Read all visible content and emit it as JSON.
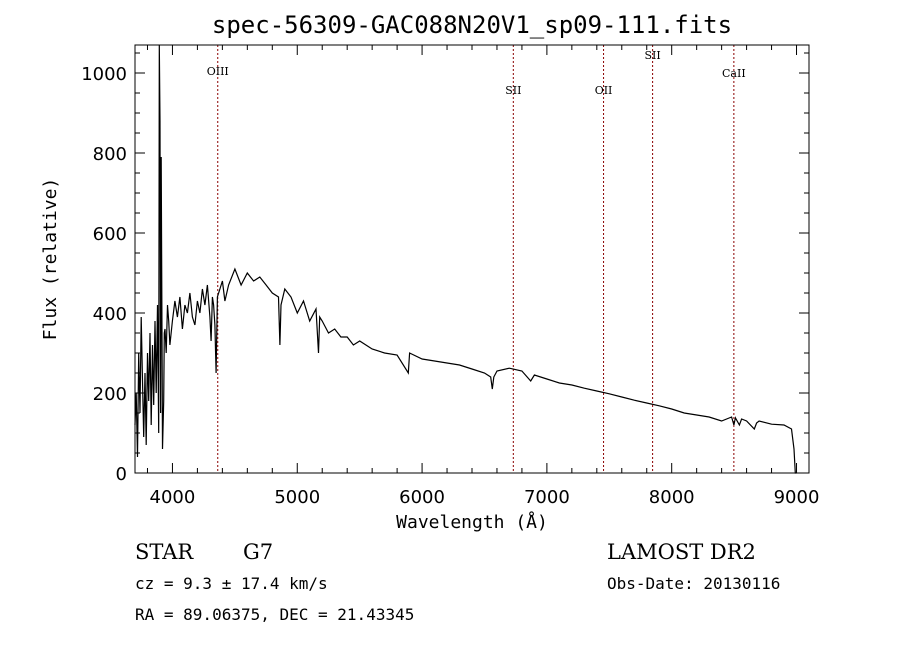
{
  "chart_data": {
    "type": "line",
    "title": "spec-56309-GAC088N20V1_sp09-111.fits",
    "xlabel": "Wavelength (Å)",
    "ylabel": "Flux (relative)",
    "xlim": [
      3700,
      9100
    ],
    "ylim": [
      0,
      1070
    ],
    "xticks": [
      4000,
      5000,
      6000,
      7000,
      8000,
      9000
    ],
    "xtick_labels": [
      "4000",
      "5000",
      "6000",
      "7000",
      "8000",
      "9000"
    ],
    "yticks": [
      0,
      200,
      400,
      600,
      800,
      1000
    ],
    "ytick_labels": [
      "0",
      "200",
      "400",
      "600",
      "800",
      "1000"
    ],
    "series": [
      {
        "x": [
          3700,
          3710,
          3720,
          3730,
          3740,
          3750,
          3760,
          3770,
          3780,
          3790,
          3800,
          3810,
          3820,
          3830,
          3840,
          3850,
          3860,
          3870,
          3880,
          3890,
          3895,
          3900,
          3905,
          3910,
          3920,
          3930,
          3935,
          3940,
          3950,
          3960,
          3970,
          3980,
          4000,
          4020,
          4040,
          4060,
          4080,
          4100,
          4120,
          4140,
          4160,
          4180,
          4200,
          4220,
          4240,
          4260,
          4280,
          4300,
          4310,
          4320,
          4330,
          4340,
          4350,
          4360,
          4380,
          4400,
          4420,
          4450,
          4500,
          4550,
          4600,
          4650,
          4700,
          4750,
          4800,
          4850,
          4861,
          4870,
          4900,
          4950,
          5000,
          5050,
          5100,
          5150,
          5170,
          5180,
          5200,
          5250,
          5300,
          5350,
          5400,
          5450,
          5500,
          5600,
          5700,
          5800,
          5890,
          5900,
          6000,
          6100,
          6200,
          6300,
          6400,
          6500,
          6550,
          6563,
          6575,
          6600,
          6700,
          6800,
          6870,
          6900,
          7000,
          7100,
          7200,
          7300,
          7400,
          7500,
          7600,
          7700,
          7800,
          7900,
          8000,
          8100,
          8200,
          8300,
          8400,
          8480,
          8498,
          8510,
          8542,
          8560,
          8600,
          8662,
          8680,
          8700,
          8800,
          8900,
          8960,
          8980,
          8990,
          9000
        ],
        "y": [
          120,
          200,
          40,
          300,
          150,
          390,
          230,
          90,
          250,
          70,
          300,
          180,
          350,
          120,
          320,
          170,
          380,
          200,
          420,
          100,
          1070,
          880,
          150,
          790,
          60,
          180,
          350,
          360,
          300,
          420,
          380,
          320,
          380,
          430,
          390,
          440,
          360,
          420,
          400,
          450,
          390,
          370,
          430,
          400,
          460,
          420,
          470,
          390,
          330,
          440,
          420,
          370,
          250,
          440,
          460,
          480,
          430,
          470,
          510,
          470,
          500,
          480,
          490,
          470,
          450,
          440,
          320,
          420,
          460,
          440,
          400,
          430,
          380,
          410,
          300,
          390,
          380,
          350,
          360,
          340,
          340,
          320,
          330,
          310,
          300,
          295,
          250,
          300,
          285,
          280,
          275,
          270,
          260,
          250,
          240,
          210,
          240,
          255,
          262,
          255,
          230,
          245,
          235,
          225,
          220,
          212,
          205,
          198,
          190,
          182,
          175,
          168,
          160,
          150,
          145,
          140,
          130,
          140,
          120,
          138,
          120,
          135,
          130,
          110,
          125,
          130,
          122,
          120,
          110,
          60,
          0,
          0
        ]
      }
    ],
    "lines": [
      {
        "x": 4363,
        "label": "OIII"
      },
      {
        "x": 6731,
        "label": "SII"
      },
      {
        "x": 7454,
        "label": "OII"
      },
      {
        "x": 7847,
        "label": "SII"
      },
      {
        "x": 8498,
        "label": "CaII"
      }
    ],
    "line_color": "#8b0000",
    "grid": false
  },
  "info": {
    "object_type": "STAR",
    "subclass": "G7",
    "survey": "LAMOST DR2",
    "cz": "cz = 9.3 ± 17.4 km/s",
    "obs_date": "Obs-Date: 20130116",
    "coords": "RA =  89.06375, DEC =  21.43345"
  }
}
